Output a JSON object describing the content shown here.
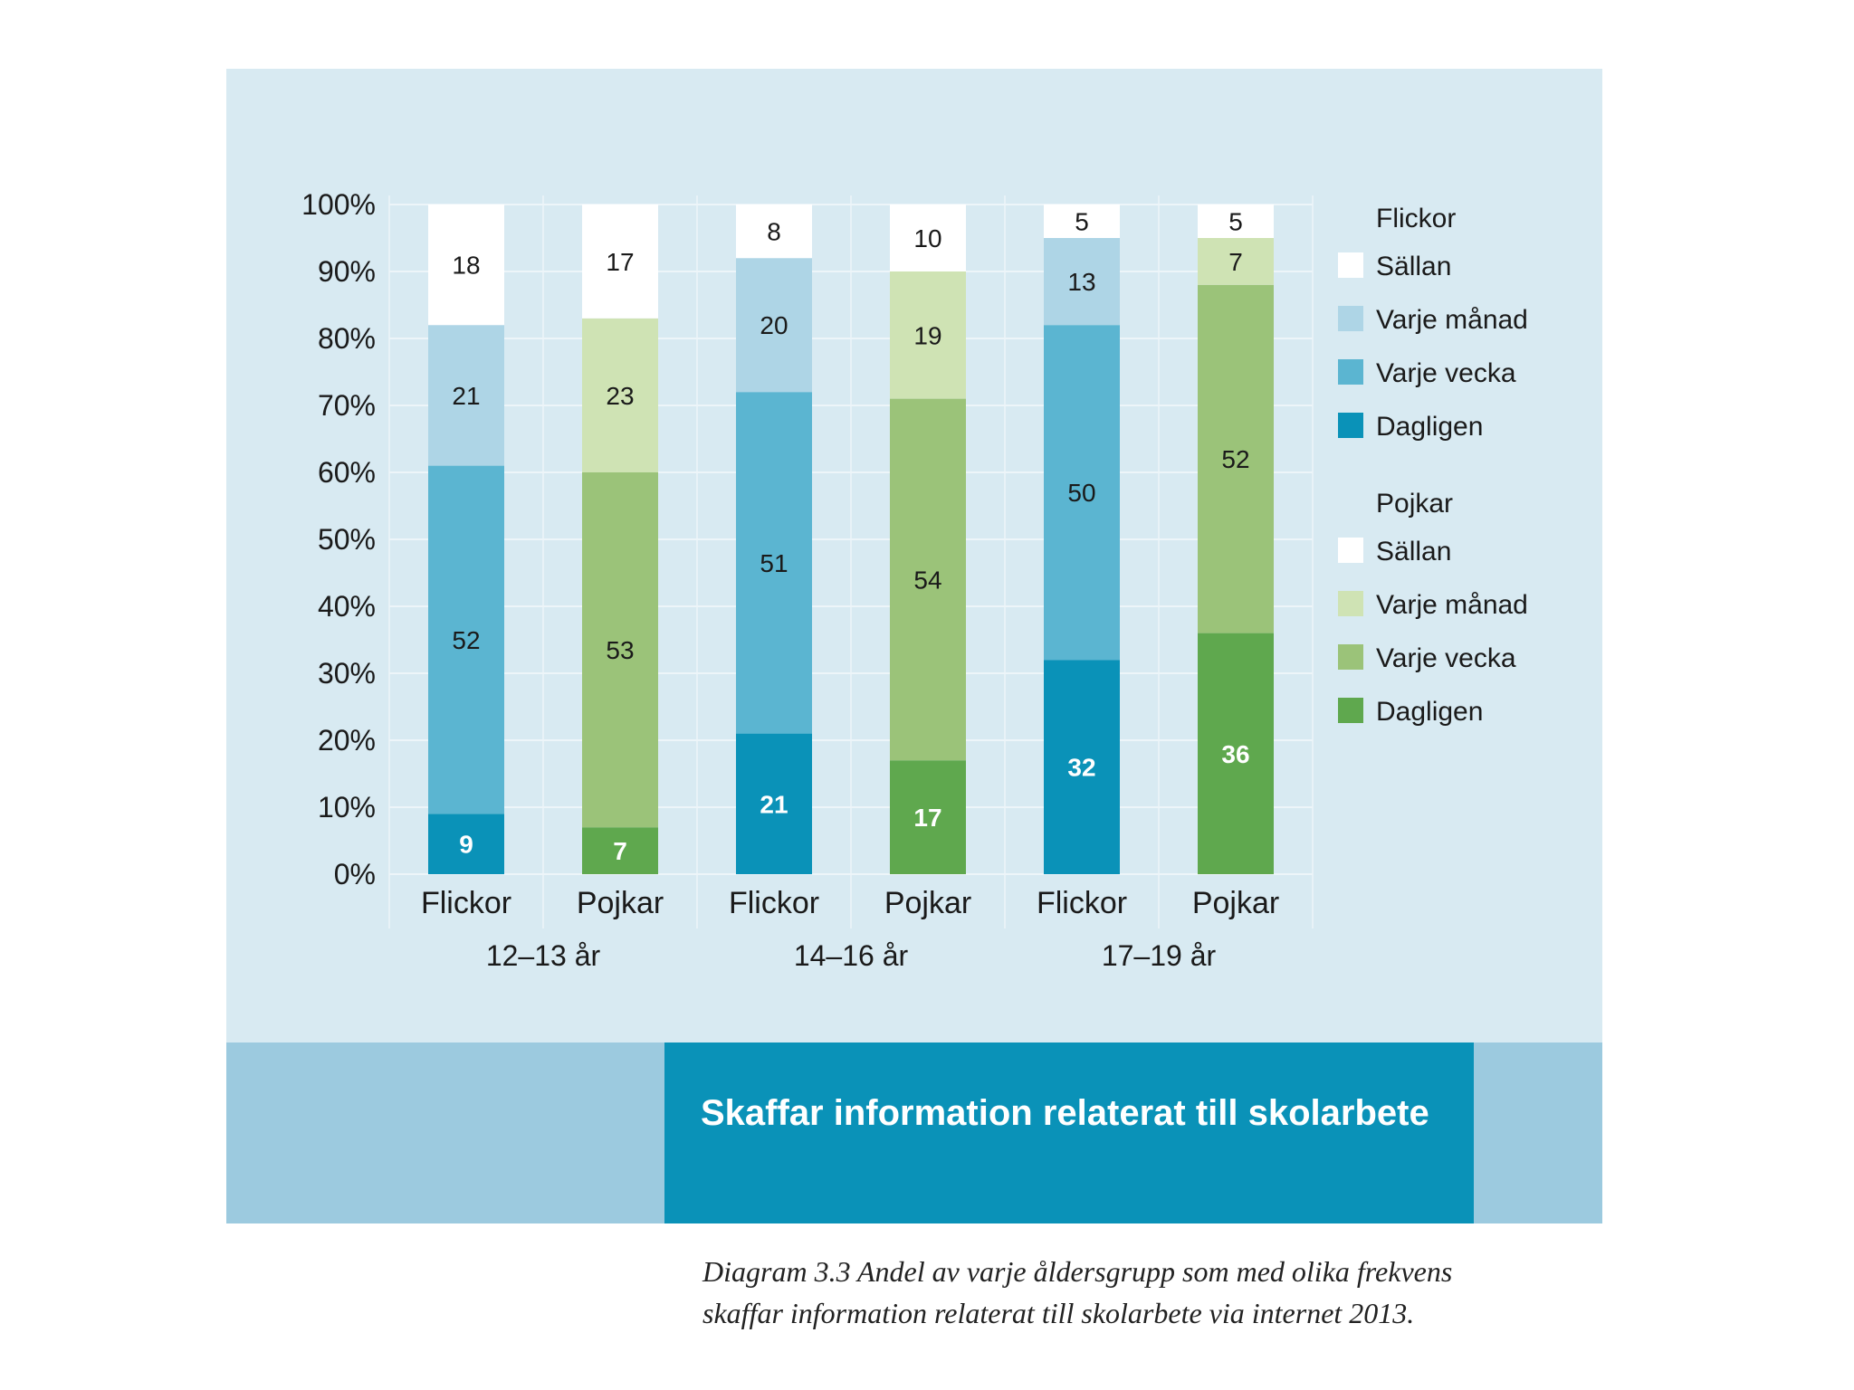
{
  "chart_data": {
    "type": "bar",
    "stacked": true,
    "title": "Skaffar information relaterat till skolarbete",
    "caption": "Diagram 3.3 Andel av varje åldersgrupp som med olika frekvens skaffar information relaterat till skolarbete via internet 2013.",
    "yticks": [
      "0%",
      "10%",
      "20%",
      "30%",
      "40%",
      "50%",
      "60%",
      "70%",
      "80%",
      "90%",
      "100%"
    ],
    "ylim": [
      0,
      100
    ],
    "grid": true,
    "legend_position": "right",
    "groups": [
      "12–13 år",
      "14–16 år",
      "17–19 år"
    ],
    "bars": [
      {
        "category": "Flickor",
        "group": "12–13 år",
        "palette": "flickor",
        "values": {
          "Dagligen": 9,
          "Varje vecka": 52,
          "Varje månad": 21,
          "Sällan": 18
        }
      },
      {
        "category": "Pojkar",
        "group": "12–13 år",
        "palette": "pojkar",
        "values": {
          "Dagligen": 7,
          "Varje vecka": 53,
          "Varje månad": 23,
          "Sällan": 17
        }
      },
      {
        "category": "Flickor",
        "group": "14–16 år",
        "palette": "flickor",
        "values": {
          "Dagligen": 21,
          "Varje vecka": 51,
          "Varje månad": 20,
          "Sällan": 8
        }
      },
      {
        "category": "Pojkar",
        "group": "14–16 år",
        "palette": "pojkar",
        "values": {
          "Dagligen": 17,
          "Varje vecka": 54,
          "Varje månad": 19,
          "Sällan": 10
        }
      },
      {
        "category": "Flickor",
        "group": "17–19 år",
        "palette": "flickor",
        "values": {
          "Dagligen": 32,
          "Varje vecka": 50,
          "Varje månad": 13,
          "Sällan": 5
        }
      },
      {
        "category": "Pojkar",
        "group": "17–19 år",
        "palette": "pojkar",
        "values": {
          "Dagligen": 36,
          "Varje vecka": 52,
          "Varje månad": 7,
          "Sällan": 5
        }
      }
    ],
    "stack_order": [
      "Dagligen",
      "Varje vecka",
      "Varje månad",
      "Sällan"
    ],
    "palettes": {
      "flickor": {
        "Dagligen": "#0a92b8",
        "Varje vecka": "#5bb5d1",
        "Varje månad": "#aed5e6",
        "Sällan": "#ffffff"
      },
      "pojkar": {
        "Dagligen": "#5fa84e",
        "Varje vecka": "#9bc379",
        "Varje månad": "#cfe3b4",
        "Sällan": "#ffffff"
      }
    },
    "label_colors": {
      "Dagligen": "#ffffff",
      "Varje vecka": "#1a1a1a",
      "Varje månad": "#1a1a1a",
      "Sällan": "#1a1a1a"
    },
    "legend": [
      {
        "heading": "Flickor",
        "palette": "flickor",
        "items": [
          "Sällan",
          "Varje månad",
          "Varje vecka",
          "Dagligen"
        ]
      },
      {
        "heading": "Pojkar",
        "palette": "pojkar",
        "items": [
          "Sällan",
          "Varje månad",
          "Varje vecka",
          "Dagligen"
        ]
      }
    ]
  }
}
